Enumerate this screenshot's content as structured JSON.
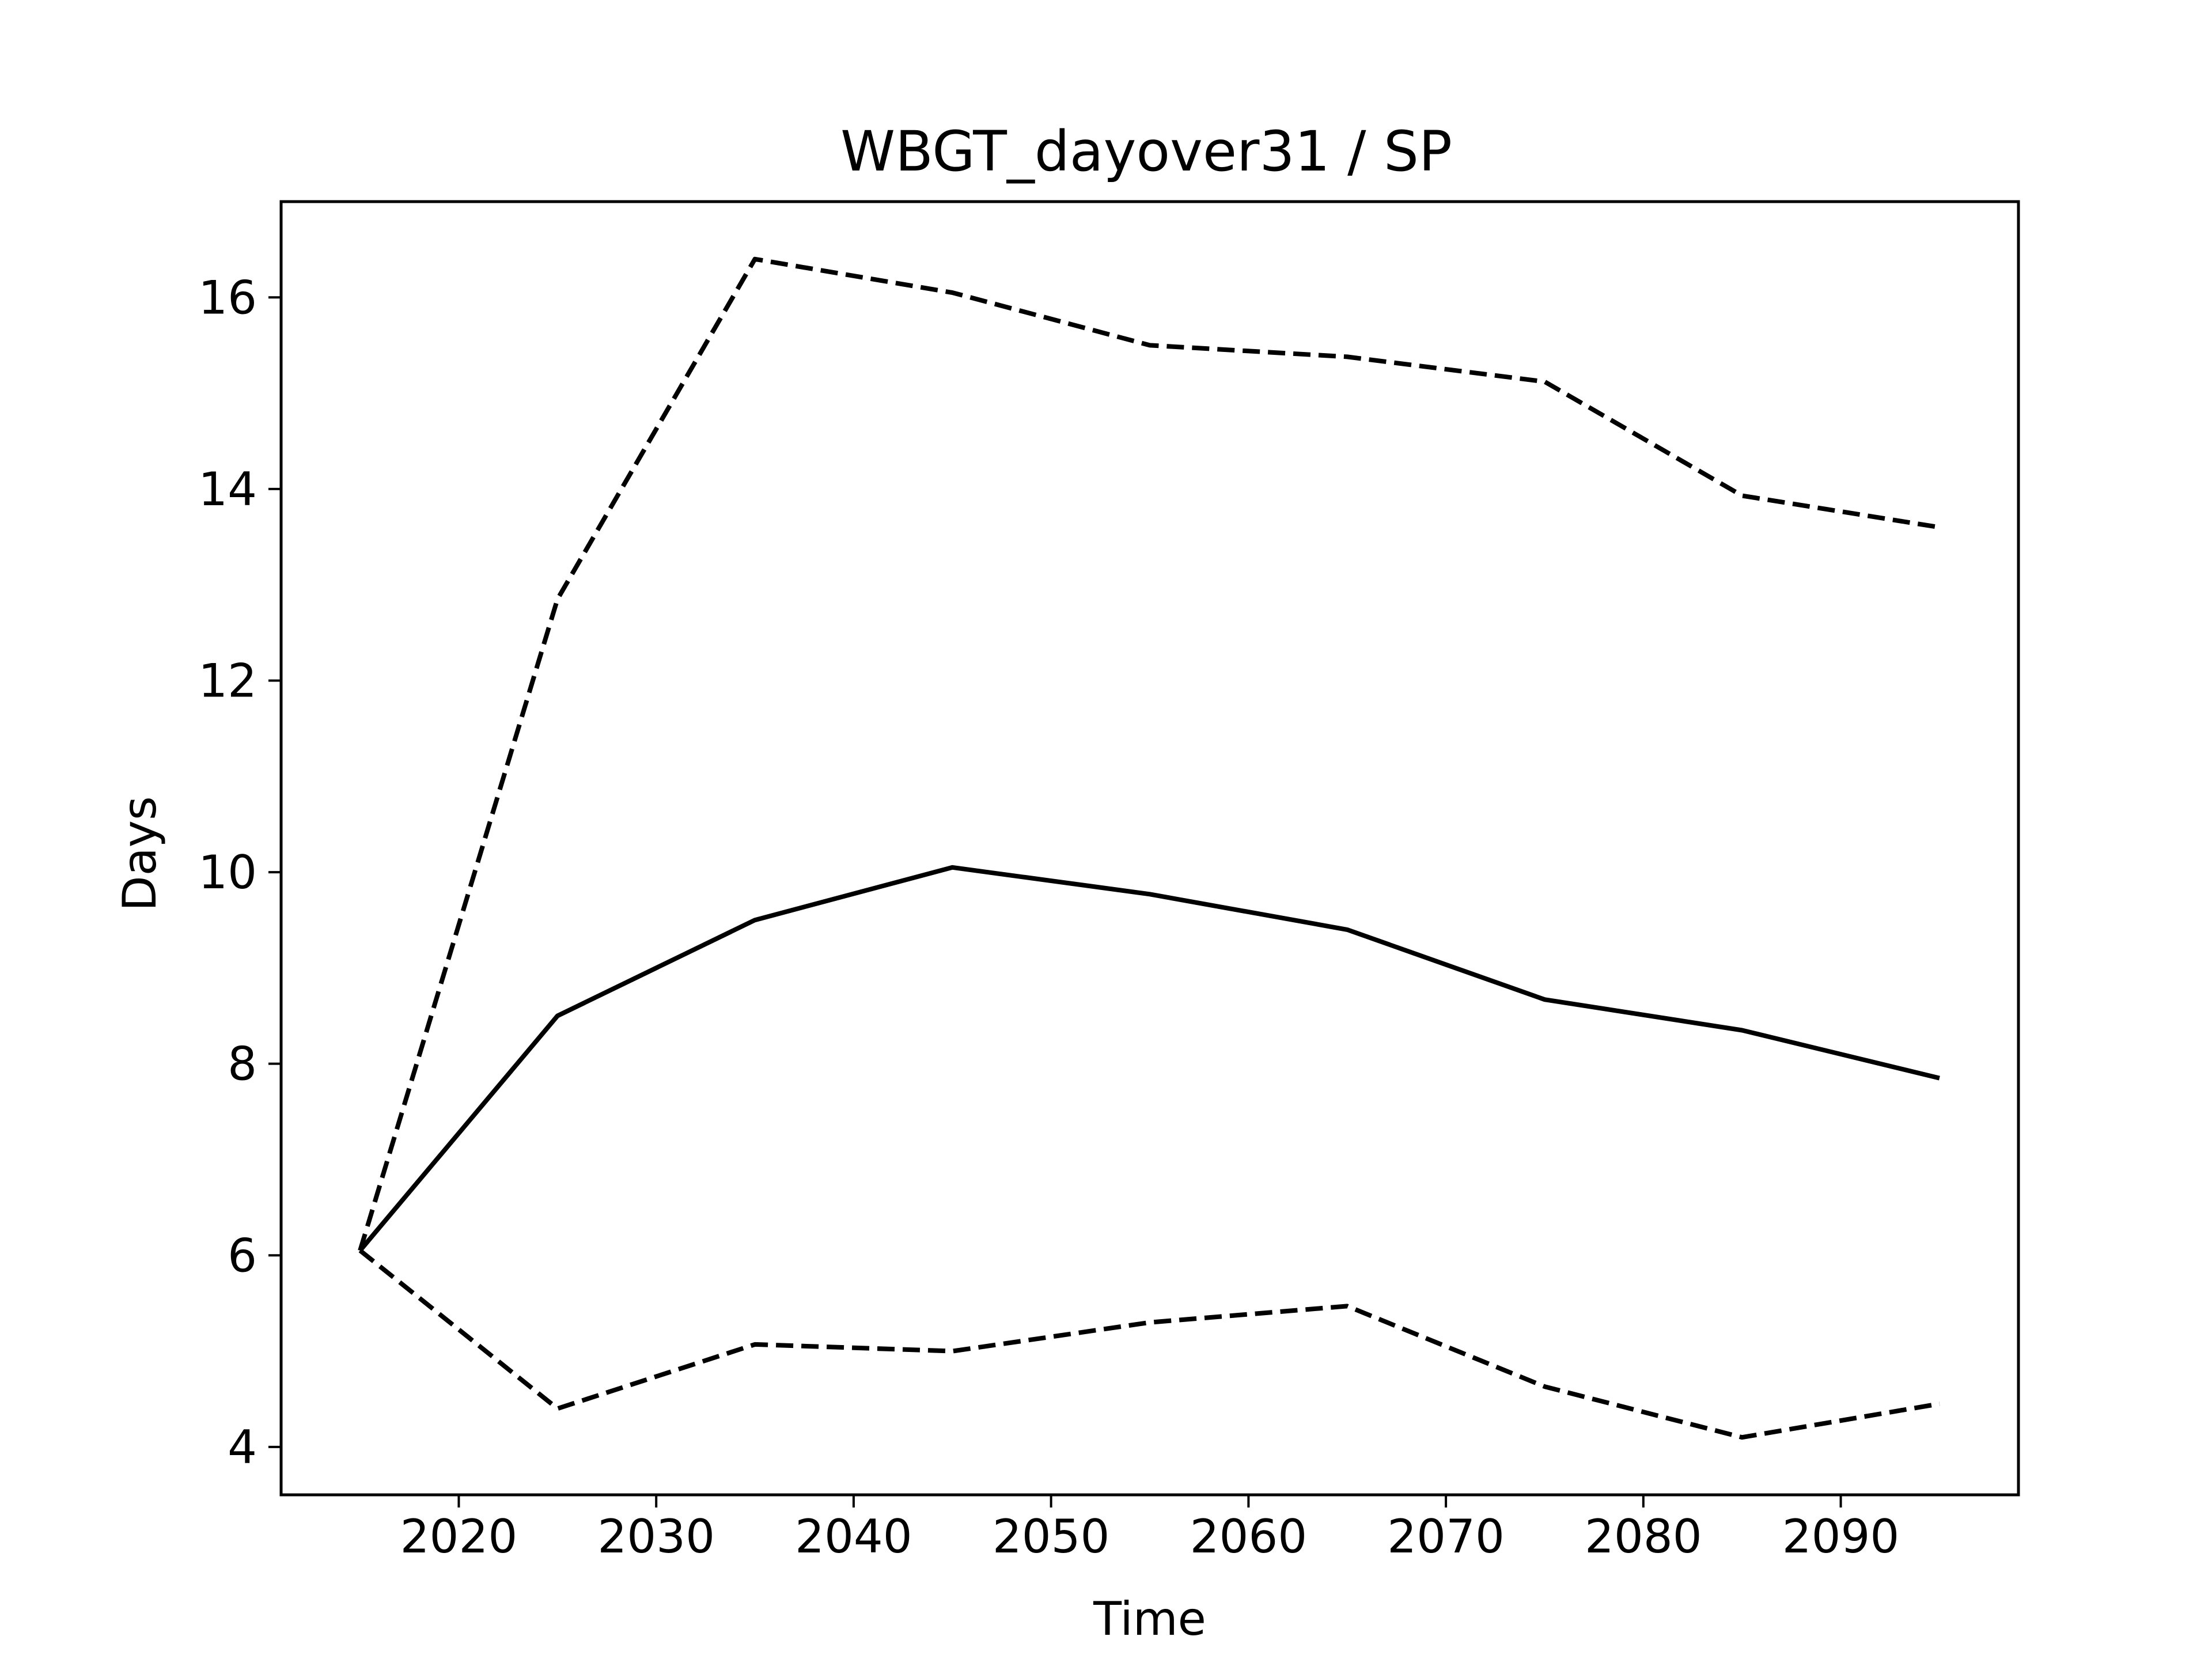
{
  "chart_data": {
    "type": "line",
    "title": "WBGT_dayover31 / SP",
    "xlabel": "Time",
    "ylabel": "Days",
    "xlim": [
      2011,
      2099
    ],
    "ylim": [
      3.5,
      17.0
    ],
    "xticks": [
      2020,
      2030,
      2040,
      2050,
      2060,
      2070,
      2080,
      2090
    ],
    "yticks": [
      4,
      6,
      8,
      10,
      12,
      14,
      16
    ],
    "grid": false,
    "legend": "none",
    "x": [
      2015,
      2025,
      2035,
      2045,
      2055,
      2065,
      2075,
      2085,
      2095
    ],
    "series": [
      {
        "style": "solid",
        "color": "#000000",
        "values": [
          6.05,
          8.5,
          9.5,
          10.05,
          9.77,
          9.4,
          8.67,
          8.35,
          7.85
        ]
      },
      {
        "style": "dashed",
        "color": "#000000",
        "values": [
          6.05,
          12.85,
          16.4,
          16.05,
          15.5,
          15.38,
          15.12,
          13.93,
          13.6
        ]
      },
      {
        "style": "dashed",
        "color": "#000000",
        "values": [
          6.05,
          4.4,
          5.07,
          5.0,
          5.3,
          5.47,
          4.63,
          4.1,
          4.45
        ]
      }
    ]
  }
}
